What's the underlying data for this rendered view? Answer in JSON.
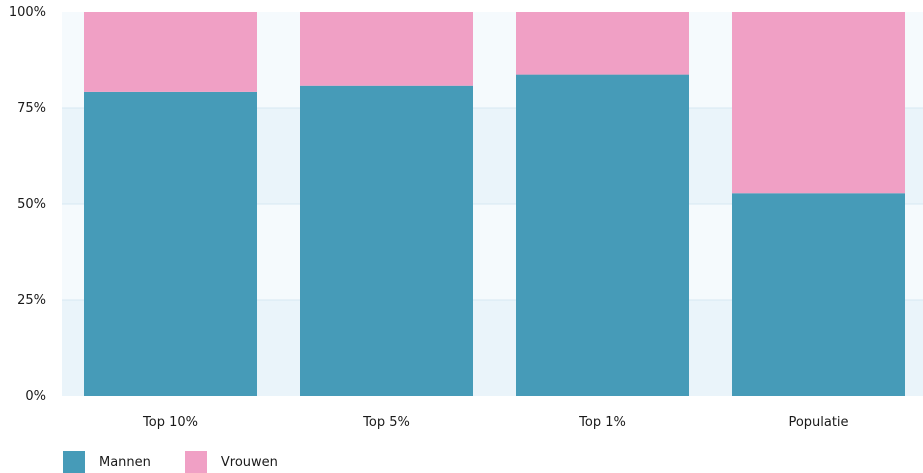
{
  "chart_data": {
    "type": "bar",
    "stacked": true,
    "categories": [
      "Top 10%",
      "Top 5%",
      "Top 1%",
      "Populatie"
    ],
    "series": [
      {
        "name": "Mannen",
        "values": [
          79.2,
          80.8,
          83.7,
          52.8
        ],
        "color": "#469bb8"
      },
      {
        "name": "Vrouwen",
        "values": [
          20.8,
          19.2,
          16.3,
          47.2
        ],
        "color": "#f0a0c5"
      }
    ],
    "y_ticks": [
      "0%",
      "25%",
      "50%",
      "75%",
      "100%"
    ],
    "ylim": [
      0,
      100
    ],
    "grid": true,
    "legend_position": "bottom-left",
    "background_colors": {
      "band_light": "#f5fafd",
      "band_dark": "#eaf4fa",
      "gridline": "#d6e8f2"
    }
  }
}
